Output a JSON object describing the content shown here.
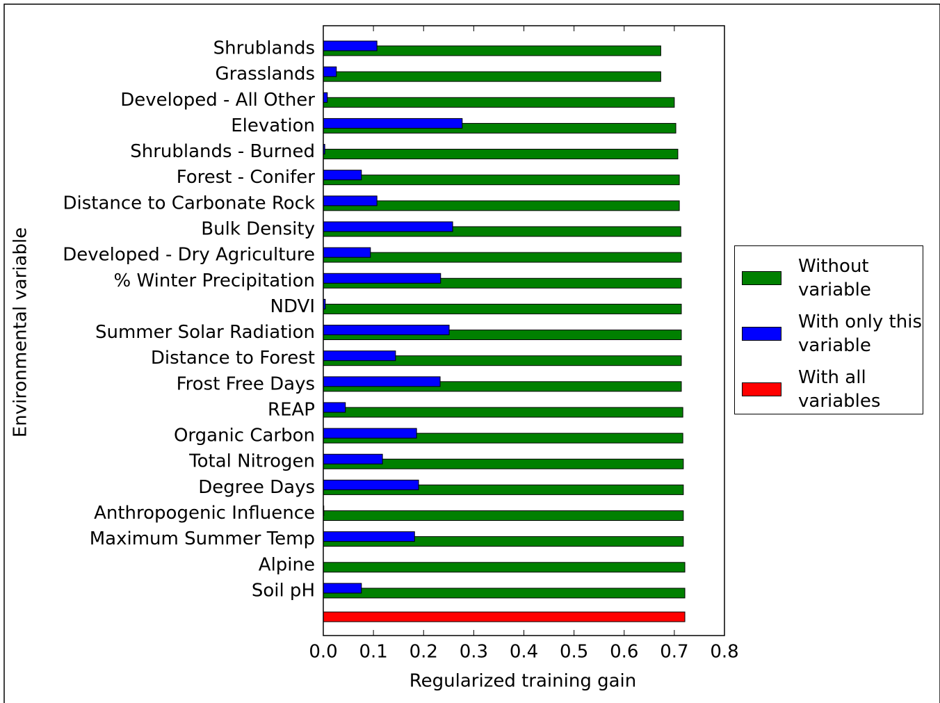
{
  "chart_data": {
    "type": "bar",
    "orientation": "horizontal",
    "xlabel": "Regularized training gain",
    "ylabel": "Environmental variable",
    "categories": [
      "Shrublands",
      "Grasslands",
      "Developed - All Other",
      "Elevation",
      "Shrublands - Burned",
      "Forest - Conifer",
      "Distance to Carbonate Rock",
      "Bulk Density",
      "Developed - Dry Agriculture",
      "% Winter Precipitation",
      "NDVI",
      "Summer Solar Radiation",
      "Distance to Forest",
      "Frost Free Days",
      "REAP",
      "Organic Carbon",
      "Total Nitrogen",
      "Degree Days",
      "Anthropogenic Influence",
      "Maximum Summer Temp",
      "Alpine",
      "Soil pH",
      null
    ],
    "series": [
      {
        "name": "Without variable",
        "color": "#008000",
        "values": [
          0.673,
          0.673,
          0.7,
          0.703,
          0.707,
          0.71,
          0.71,
          0.713,
          0.714,
          0.714,
          0.714,
          0.714,
          0.714,
          0.714,
          0.717,
          0.717,
          0.718,
          0.718,
          0.718,
          0.718,
          0.721,
          0.721,
          null
        ]
      },
      {
        "name": "With only this variable",
        "color": "#0000ff",
        "values": [
          0.107,
          0.026,
          0.008,
          0.277,
          0.003,
          0.076,
          0.107,
          0.258,
          0.094,
          0.234,
          0.004,
          0.251,
          0.144,
          0.233,
          0.044,
          0.186,
          0.118,
          0.19,
          0.001,
          0.182,
          0,
          0.076,
          null
        ]
      },
      {
        "name": "With all variables",
        "color": "#ff0000",
        "values": [
          null,
          null,
          null,
          null,
          null,
          null,
          null,
          null,
          null,
          null,
          null,
          null,
          null,
          null,
          null,
          null,
          null,
          null,
          null,
          null,
          null,
          null,
          0.721
        ]
      }
    ],
    "xlim": [
      0,
      0.8
    ],
    "xticks": [
      {
        "value": 0,
        "label": "0.0"
      },
      0.1,
      0.2,
      0.3,
      0.4,
      0.5,
      0.6,
      0.7,
      0.8
    ],
    "legend": "right"
  }
}
